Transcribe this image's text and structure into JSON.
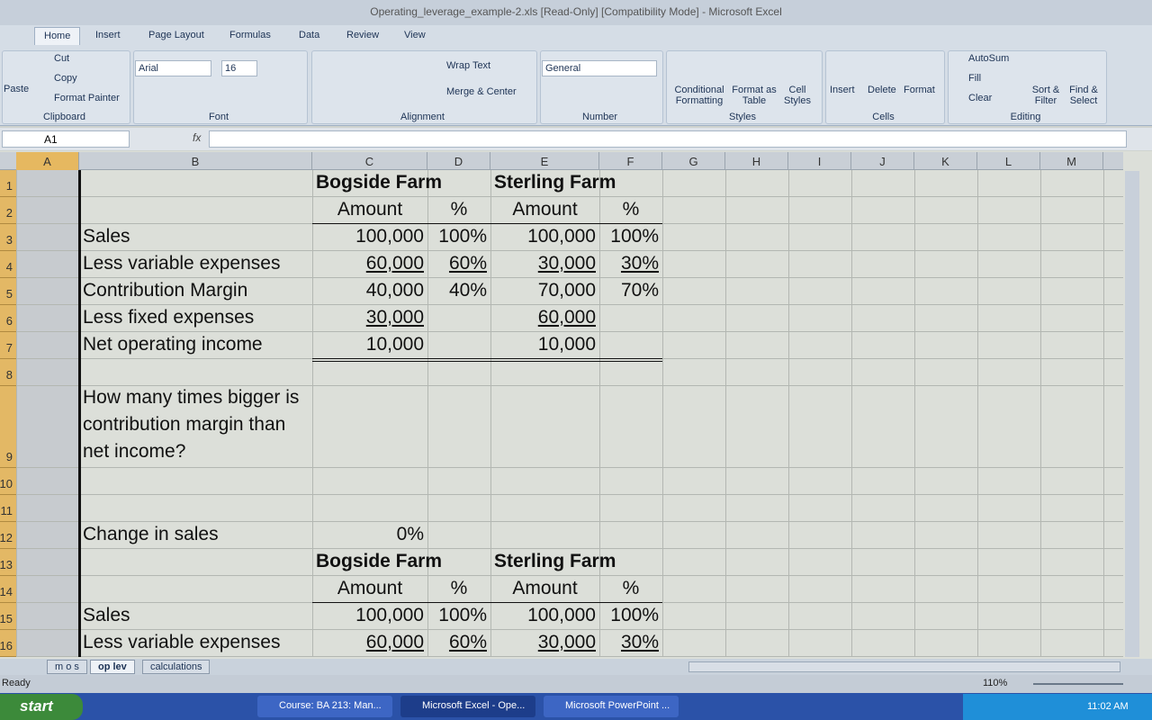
{
  "title_bar": {
    "title": "Operating_leverage_example-2.xls  [Read-Only]  [Compatibility Mode] - Microsoft Excel"
  },
  "ribbon": {
    "tabs": [
      "Home",
      "Insert",
      "Page Layout",
      "Formulas",
      "Data",
      "Review",
      "View"
    ],
    "active_tab": "Home",
    "groups": [
      {
        "name": "Clipboard",
        "items": [
          "Paste",
          "Cut",
          "Copy",
          "Format Painter"
        ]
      },
      {
        "name": "Font",
        "items": [
          "Arial",
          "16"
        ]
      },
      {
        "name": "Alignment",
        "items": [
          "Wrap Text",
          "Merge & Center"
        ]
      },
      {
        "name": "Number",
        "items": [
          "General"
        ]
      },
      {
        "name": "Styles",
        "items": [
          "Conditional Formatting",
          "Format as Table",
          "Cell Styles"
        ]
      },
      {
        "name": "Cells",
        "items": [
          "Insert",
          "Delete",
          "Format"
        ]
      },
      {
        "name": "Editing",
        "items": [
          "AutoSum",
          "Fill",
          "Clear",
          "Sort & Filter",
          "Find & Select"
        ]
      }
    ]
  },
  "formula_bar": {
    "name_box": "A1",
    "fx": "fx"
  },
  "columns": [
    "A",
    "B",
    "C",
    "D",
    "E",
    "F",
    "G",
    "H",
    "I",
    "J",
    "K",
    "L",
    "M"
  ],
  "rows": [
    {
      "number": "1",
      "cells": {
        "C": "Bogside Farm",
        "E": "Sterling Farm"
      }
    },
    {
      "number": "2",
      "cells": {
        "C": "Amount",
        "D": "%",
        "E": "Amount",
        "F": "%"
      }
    },
    {
      "number": "3",
      "cells": {
        "B": "Sales",
        "C": "100,000",
        "D": "100%",
        "E": "100,000",
        "F": "100%"
      }
    },
    {
      "number": "4",
      "cells": {
        "B": "Less variable expenses",
        "C": "60,000",
        "D": "60%",
        "E": "30,000",
        "F": "30%"
      }
    },
    {
      "number": "5",
      "cells": {
        "B": "Contribution Margin",
        "C": "40,000",
        "D": "40%",
        "E": "70,000",
        "F": "70%"
      }
    },
    {
      "number": "6",
      "cells": {
        "B": "Less fixed expenses",
        "C": "30,000",
        "E": "60,000"
      }
    },
    {
      "number": "7",
      "cells": {
        "B": "Net operating income",
        "C": "10,000",
        "E": "10,000"
      }
    },
    {
      "number": "8",
      "cells": {}
    },
    {
      "number": "9",
      "cells": {
        "B": "How many times bigger is contribution margin than net income?"
      }
    },
    {
      "number": "10",
      "cells": {}
    },
    {
      "number": "11",
      "cells": {}
    },
    {
      "number": "12",
      "cells": {
        "B": "Change in sales",
        "C": "0%"
      }
    },
    {
      "number": "13",
      "cells": {
        "C": "Bogside Farm",
        "E": "Sterling Farm"
      }
    },
    {
      "number": "14",
      "cells": {
        "C": "Amount",
        "D": "%",
        "E": "Amount",
        "F": "%"
      }
    },
    {
      "number": "15",
      "cells": {
        "B": "Sales",
        "C": "100,000",
        "D": "100%",
        "E": "100,000",
        "F": "100%"
      }
    },
    {
      "number": "16",
      "cells": {
        "B": "Less variable expenses",
        "C": "60,000",
        "D": "60%",
        "E": "30,000",
        "F": "30%"
      }
    }
  ],
  "formats": {
    "bold": [
      "C1",
      "E1",
      "C13",
      "E13"
    ],
    "center": [
      "C2",
      "D2",
      "E2",
      "F2",
      "C14",
      "D14",
      "E14",
      "F14"
    ],
    "left": [
      "B3",
      "B4",
      "B5",
      "B6",
      "B7",
      "B9",
      "B12",
      "B15",
      "B16",
      "C1",
      "E1",
      "C13",
      "E13"
    ],
    "underline": [
      "C4",
      "D4",
      "E4",
      "F4",
      "C6",
      "E6",
      "C16",
      "D16",
      "E16",
      "F16"
    ]
  },
  "sheet_tabs": [
    "m o s",
    "op lev",
    "calculations"
  ],
  "active_sheet": "op lev",
  "status_bar": {
    "status": "Ready",
    "zoom": "110%"
  },
  "taskbar": {
    "start": "start",
    "windows": [
      "Course: BA 213: Man...",
      "Microsoft Excel - Ope...",
      "Microsoft PowerPoint ..."
    ],
    "clock": "11:02 AM"
  }
}
